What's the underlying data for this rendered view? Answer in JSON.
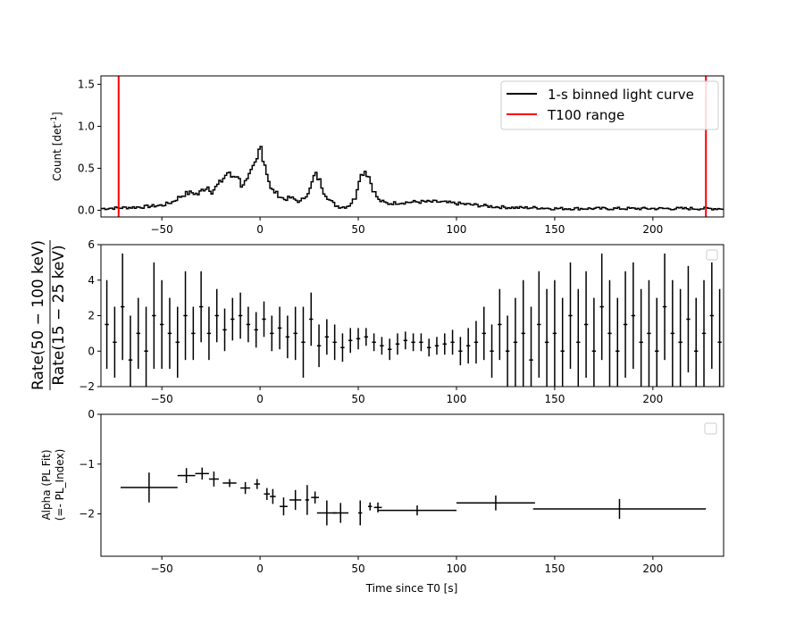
{
  "chart_data": [
    {
      "type": "line",
      "panel": "top",
      "ylabel": "Count [det",
      "ylabel_sup": "-1",
      "ylabel_end": "]",
      "xlim": [
        -81,
        236
      ],
      "ylim": [
        -0.08,
        1.6
      ],
      "xticks": [
        -50,
        0,
        50,
        100,
        150,
        200
      ],
      "yticks": [
        0.0,
        0.5,
        1.0,
        1.5
      ],
      "ytick_labels": [
        "0.0",
        "0.5",
        "1.0",
        "1.5"
      ],
      "grid": false,
      "legend_position": "top-right",
      "legend": [
        "1-s binned light curve",
        "T100 range"
      ],
      "series": [
        {
          "name": "1-s binned light curve",
          "color": "#000000",
          "x": [
            -81,
            -70,
            -60,
            -55,
            -50,
            -45,
            -42,
            -38,
            -35,
            -32,
            -30,
            -27,
            -25,
            -22,
            -20,
            -17,
            -15,
            -12,
            -10,
            -7,
            -5,
            -3,
            -2,
            -1,
            0,
            1,
            2,
            3,
            5,
            7,
            10,
            12,
            15,
            18,
            20,
            22,
            25,
            27,
            28,
            30,
            32,
            35,
            38,
            40,
            43,
            45,
            48,
            50,
            52,
            53,
            55,
            57,
            60,
            63,
            65,
            70,
            80,
            90,
            100,
            110,
            120,
            130,
            140,
            150,
            170,
            200,
            236
          ],
          "y": [
            0.02,
            0.03,
            0.04,
            0.05,
            0.06,
            0.1,
            0.15,
            0.2,
            0.21,
            0.19,
            0.24,
            0.28,
            0.22,
            0.3,
            0.35,
            0.45,
            0.4,
            0.42,
            0.3,
            0.35,
            0.45,
            0.55,
            0.6,
            0.72,
            0.82,
            0.6,
            0.55,
            0.45,
            0.25,
            0.22,
            0.16,
            0.13,
            0.15,
            0.12,
            0.1,
            0.15,
            0.25,
            0.4,
            0.42,
            0.35,
            0.22,
            0.12,
            0.06,
            0.04,
            0.04,
            0.06,
            0.15,
            0.38,
            0.45,
            0.47,
            0.4,
            0.25,
            0.12,
            0.09,
            0.08,
            0.09,
            0.1,
            0.1,
            0.08,
            0.06,
            0.04,
            0.03,
            0.03,
            0.02,
            0.02,
            0.02,
            0.02
          ]
        }
      ],
      "vlines": {
        "name": "T100 range",
        "color": "#ff0000",
        "x": [
          -72,
          227
        ]
      }
    },
    {
      "type": "scatter",
      "panel": "middle",
      "ylabel_num": "Rate(50 − 100 keV)",
      "ylabel_den": "Rate(15 − 25 keV)",
      "xlim": [
        -81,
        236
      ],
      "ylim": [
        -2,
        6
      ],
      "xticks": [
        -50,
        0,
        50,
        100,
        150,
        200
      ],
      "yticks": [
        -2,
        0,
        2,
        4,
        6
      ],
      "ytick_labels": [
        "−2",
        "0",
        "2",
        "4",
        "6"
      ],
      "grid": false,
      "series": [
        {
          "color": "#000000",
          "x": [
            -78,
            -74,
            -70,
            -66,
            -62,
            -58,
            -54,
            -50,
            -46,
            -42,
            -38,
            -34,
            -30,
            -26,
            -22,
            -18,
            -14,
            -10,
            -6,
            -2,
            2,
            6,
            10,
            14,
            18,
            22,
            26,
            30,
            34,
            38,
            42,
            46,
            50,
            54,
            58,
            62,
            66,
            70,
            74,
            78,
            82,
            86,
            90,
            94,
            98,
            102,
            106,
            110,
            114,
            118,
            122,
            126,
            130,
            134,
            138,
            142,
            146,
            150,
            154,
            158,
            162,
            166,
            170,
            174,
            178,
            182,
            186,
            190,
            194,
            198,
            202,
            206,
            210,
            214,
            218,
            222,
            226,
            230,
            234
          ],
          "y": [
            1.5,
            0.5,
            2.5,
            -0.5,
            1.0,
            0.0,
            2.0,
            1.5,
            1.0,
            0.5,
            2.0,
            1.0,
            2.5,
            1.0,
            2.0,
            1.2,
            1.8,
            2.0,
            1.5,
            1.2,
            1.8,
            1.0,
            1.3,
            0.8,
            1.0,
            0.5,
            1.8,
            0.3,
            0.8,
            0.5,
            0.2,
            0.6,
            0.7,
            0.8,
            0.5,
            0.3,
            0.1,
            0.4,
            0.6,
            0.5,
            0.5,
            0.2,
            0.3,
            0.4,
            0.5,
            0.0,
            0.3,
            0.5,
            1.0,
            0.0,
            1.5,
            0.0,
            0.5,
            1.0,
            -0.5,
            1.5,
            0.5,
            1.0,
            0.0,
            2.0,
            0.5,
            1.5,
            0.0,
            2.5,
            1.0,
            0.0,
            1.5,
            2.0,
            0.5,
            1.0,
            0.0,
            2.5,
            1.0,
            0.5,
            1.8,
            0.0,
            1.0,
            2.0,
            0.5
          ],
          "yerr": [
            2.5,
            2.0,
            3.0,
            2.5,
            2.0,
            2.5,
            3.0,
            2.5,
            2.0,
            2.0,
            2.5,
            1.5,
            2.0,
            1.5,
            1.5,
            1.2,
            1.2,
            1.3,
            1.0,
            1.0,
            1.0,
            1.0,
            1.2,
            1.2,
            1.5,
            2.0,
            1.5,
            1.2,
            1.0,
            1.0,
            0.8,
            0.7,
            0.6,
            0.5,
            0.5,
            0.5,
            0.6,
            0.6,
            0.5,
            0.5,
            0.5,
            0.5,
            0.5,
            0.6,
            0.7,
            0.8,
            1.0,
            1.2,
            1.5,
            1.5,
            2.0,
            2.0,
            2.5,
            3.0,
            3.0,
            3.0,
            3.0,
            3.0,
            3.0,
            3.0,
            3.0,
            3.0,
            3.0,
            3.0,
            3.0,
            3.0,
            3.0,
            3.0,
            3.0,
            3.0,
            3.0,
            3.0,
            3.0,
            3.0,
            3.0,
            3.0,
            3.0,
            3.0,
            3.0
          ]
        }
      ]
    },
    {
      "type": "scatter",
      "panel": "bottom",
      "ylabel_line1": "Alpha (PL Fit)",
      "ylabel_line2": "(=- PL_Index)",
      "xlabel": "Time since T0 [s]",
      "xlim": [
        -81,
        236
      ],
      "ylim": [
        -2.85,
        0
      ],
      "xticks": [
        -50,
        0,
        50,
        100,
        150,
        200
      ],
      "yticks": [
        -2,
        -1,
        0
      ],
      "ytick_labels": [
        "−2",
        "−1",
        "0"
      ],
      "grid": false,
      "series": [
        {
          "color": "#000000",
          "x": [
            -56.5,
            -37.5,
            -29.5,
            -23.5,
            -15.5,
            -7.5,
            -1.5,
            3.5,
            6.5,
            12.0,
            18.0,
            24.0,
            28.0,
            34.0,
            41.0,
            51.0,
            56.0,
            60.0,
            80.0,
            120.0,
            183.0
          ],
          "y": [
            -1.47,
            -1.23,
            -1.19,
            -1.3,
            -1.38,
            -1.48,
            -1.4,
            -1.6,
            -1.65,
            -1.85,
            -1.72,
            -1.72,
            -1.67,
            -1.98,
            -1.98,
            -1.98,
            -1.85,
            -1.87,
            -1.93,
            -1.78,
            -1.9
          ],
          "xerr": [
            14.5,
            4.5,
            3.5,
            2.5,
            3.5,
            2.5,
            1.5,
            1.5,
            1.5,
            2.0,
            3.0,
            1.0,
            2.0,
            5.0,
            4.0,
            1.0,
            1.0,
            2.0,
            20.0,
            20.0,
            44.0
          ],
          "yerr": [
            0.3,
            0.15,
            0.12,
            0.15,
            0.08,
            0.12,
            0.1,
            0.12,
            0.15,
            0.18,
            0.2,
            0.3,
            0.12,
            0.25,
            0.2,
            0.25,
            0.08,
            0.1,
            0.1,
            0.15,
            0.2
          ]
        }
      ]
    }
  ]
}
